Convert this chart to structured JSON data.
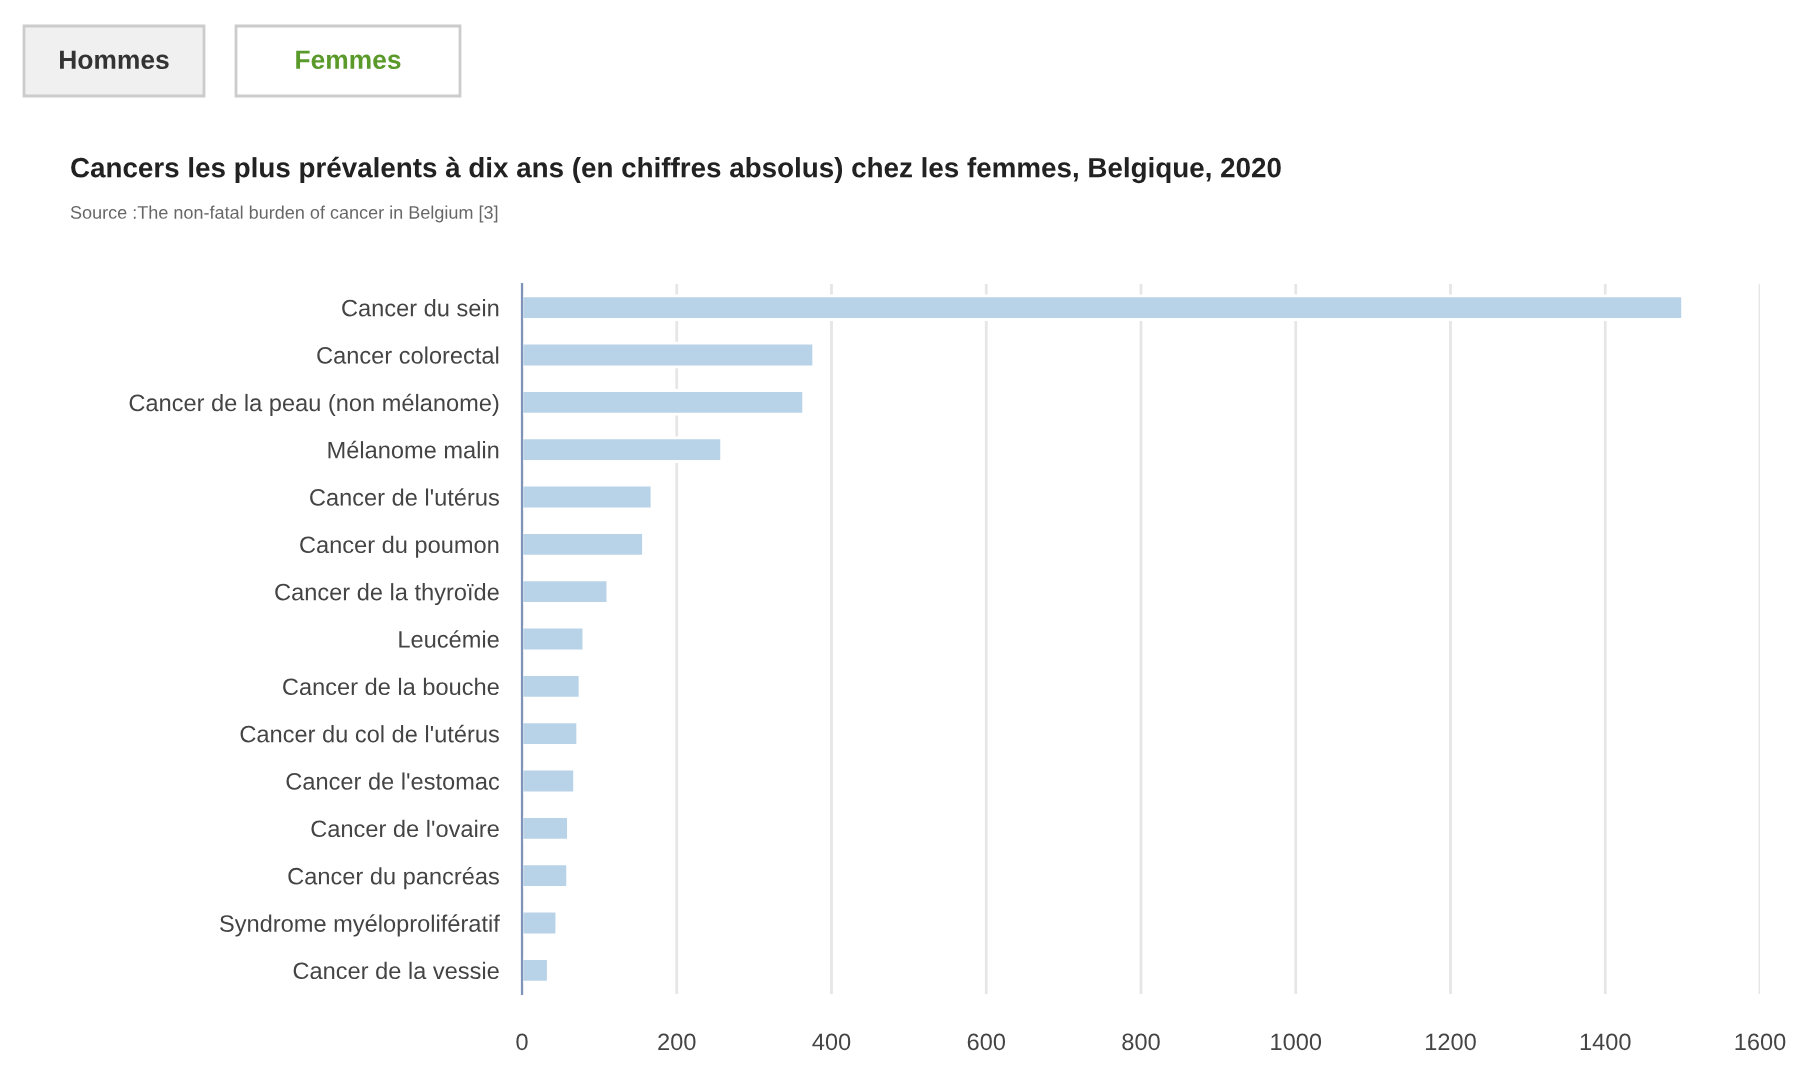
{
  "chart_data": {
    "type": "bar",
    "orientation": "horizontal",
    "title": "Cancers les plus prévalents à dix ans (en chiffres absolus) chez les femmes, Belgique, 2020",
    "annotations": [
      "Hommes",
      "Femmes",
      "Source :The non-fatal burden of cancer in Belgium [3]"
    ],
    "categories": [
      "Cancer du sein",
      "Cancer colorectal",
      "Cancer de la peau (non mélanome)",
      "Mélanome malin",
      "Cancer de l'utérus",
      "Cancer du poumon",
      "Cancer de la thyroïde",
      "Leucémie",
      "Cancer de la bouche",
      "Cancer du col de l'utérus",
      "Cancer de l'estomac",
      "Cancer de l'ovaire",
      "Cancer du pancréas",
      "Syndrome myéloprolifératif",
      "Cancer de la vessie"
    ],
    "values": [
      1500,
      377,
      364,
      258,
      168,
      157,
      111,
      80,
      75,
      72,
      68,
      60,
      59,
      45,
      34
    ],
    "color": "#b8d3e8",
    "xlim": [
      0,
      1600
    ],
    "xticks": [
      0,
      200,
      400,
      600,
      800,
      1000,
      1200,
      1400,
      1600
    ],
    "grid": "x"
  }
}
